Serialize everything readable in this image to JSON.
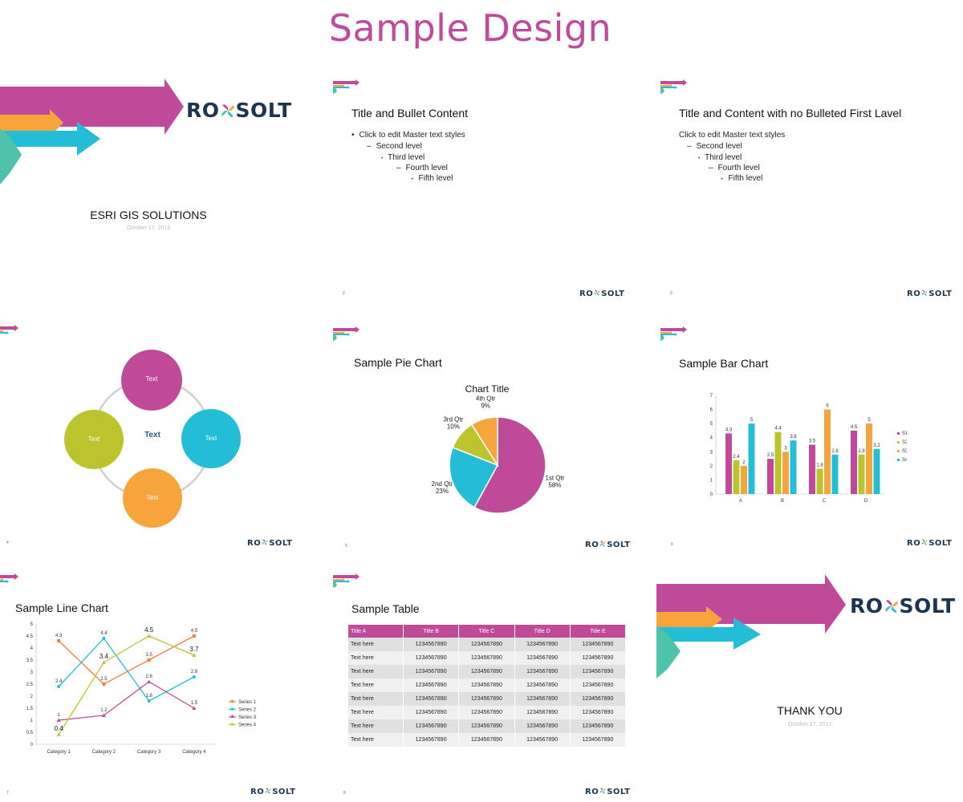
{
  "heading": "Sample Design",
  "logo": {
    "left": "RO",
    "right": "SOLT"
  },
  "colors": {
    "magenta": "#c04a9a",
    "orange": "#f6a53c",
    "cyan": "#23bdd8",
    "teal": "#4ec3a9",
    "lime": "#bcc42d",
    "navy": "#1c3550"
  },
  "slide1": {
    "title": "ESRI GIS SOLUTIONS",
    "date": "October 17, 2013"
  },
  "slide2": {
    "title": "Title and Bullet Content",
    "bullets": [
      "Click to edit Master text styles",
      "Second level",
      "Third level",
      "Fourth level",
      "Fifth level"
    ],
    "page": "2"
  },
  "slide3": {
    "title": "Title and Content with no Bulleted First Lavel",
    "lines": [
      "Click to edit Master text styles",
      "Second level",
      "Third level",
      "Fourth level",
      "Fifth level"
    ],
    "page": "3"
  },
  "slide4": {
    "center": "Text",
    "circles": [
      "Text",
      "Text",
      "Text",
      "Text"
    ],
    "page": "4"
  },
  "slide5": {
    "title": "Sample Pie Chart",
    "page": "5"
  },
  "slide6": {
    "title": "Sample Bar Chart",
    "page": "6"
  },
  "slide7": {
    "title": "Sample Line Chart",
    "page": "7"
  },
  "slide8": {
    "title": "Sample Table",
    "headers": [
      "Title A",
      "Title B",
      "Title C",
      "Title D",
      "Title E"
    ],
    "rows": [
      [
        "Text here",
        "1234567890",
        "1234567890",
        "1234567890",
        "1234567890"
      ],
      [
        "Text here",
        "1234567890",
        "1234567890",
        "1234567890",
        "1234567890"
      ],
      [
        "Text here",
        "1234567890",
        "1234567890",
        "1234567890",
        "1234567890"
      ],
      [
        "Text here",
        "1234567890",
        "1234567890",
        "1234567890",
        "1234567890"
      ],
      [
        "Text here",
        "1234567890",
        "1234567890",
        "1234567890",
        "1234567890"
      ],
      [
        "Text here",
        "1234567890",
        "1234567890",
        "1234567890",
        "1234567890"
      ],
      [
        "Text here",
        "1234567890",
        "1234567890",
        "1234567890",
        "1234567890"
      ],
      [
        "Text here",
        "1234567890",
        "1234567890",
        "1234567890",
        "1234567890"
      ]
    ],
    "page": "8"
  },
  "slide9": {
    "title": "THANK YOU",
    "date": "October 17, 2013"
  },
  "chart_data": [
    {
      "type": "pie",
      "title": "Chart Title",
      "categories": [
        "1st Qtr",
        "2nd Qtr",
        "3rd Qtr",
        "4th Qtr"
      ],
      "values": [
        58,
        23,
        10,
        9
      ],
      "labels": [
        "58%",
        "23%",
        "10%",
        "9%"
      ],
      "colors": [
        "#c04a9a",
        "#23bdd8",
        "#bcc42d",
        "#f6a53c"
      ]
    },
    {
      "type": "bar",
      "title": "",
      "categories": [
        "A",
        "B",
        "C",
        "D"
      ],
      "ylim": [
        0,
        7
      ],
      "yticks": [
        "0",
        "1",
        "2",
        "3",
        "4",
        "5",
        "6",
        "7"
      ],
      "legend": "right",
      "series": [
        {
          "name": "S1",
          "values": [
            4.3,
            2.5,
            3.5,
            4.5
          ],
          "color": "#c04a9a"
        },
        {
          "name": "S2",
          "values": [
            2.4,
            4.4,
            1.8,
            2.8
          ],
          "color": "#bcc42d"
        },
        {
          "name": "S3",
          "values": [
            2,
            3,
            6,
            5
          ],
          "color": "#f6a53c"
        },
        {
          "name": "S4",
          "values": [
            5,
            3.8,
            2.8,
            3.2
          ],
          "color": "#23bdd8"
        }
      ]
    },
    {
      "type": "line",
      "title": "",
      "categories": [
        "Category 1",
        "Category 2",
        "Category 3",
        "Category 4"
      ],
      "ylim": [
        0,
        5
      ],
      "yticks": [
        "0",
        "0.5",
        "1",
        "1.5",
        "2",
        "2.5",
        "3",
        "3.5",
        "4",
        "4.5",
        "5"
      ],
      "legend": "right",
      "series": [
        {
          "name": "Series 1",
          "values": [
            4.3,
            2.5,
            3.5,
            4.5
          ],
          "color": "#f08040"
        },
        {
          "name": "Series 2",
          "values": [
            2.4,
            4.4,
            1.8,
            2.8
          ],
          "color": "#23bdd8"
        },
        {
          "name": "Series 3",
          "values": [
            1,
            1.2,
            2.6,
            1.5
          ],
          "color": "#c04a9a"
        },
        {
          "name": "Series 4",
          "values": [
            0.4,
            3.4,
            4.5,
            3.7
          ],
          "color": "#bcc42d"
        }
      ]
    }
  ]
}
